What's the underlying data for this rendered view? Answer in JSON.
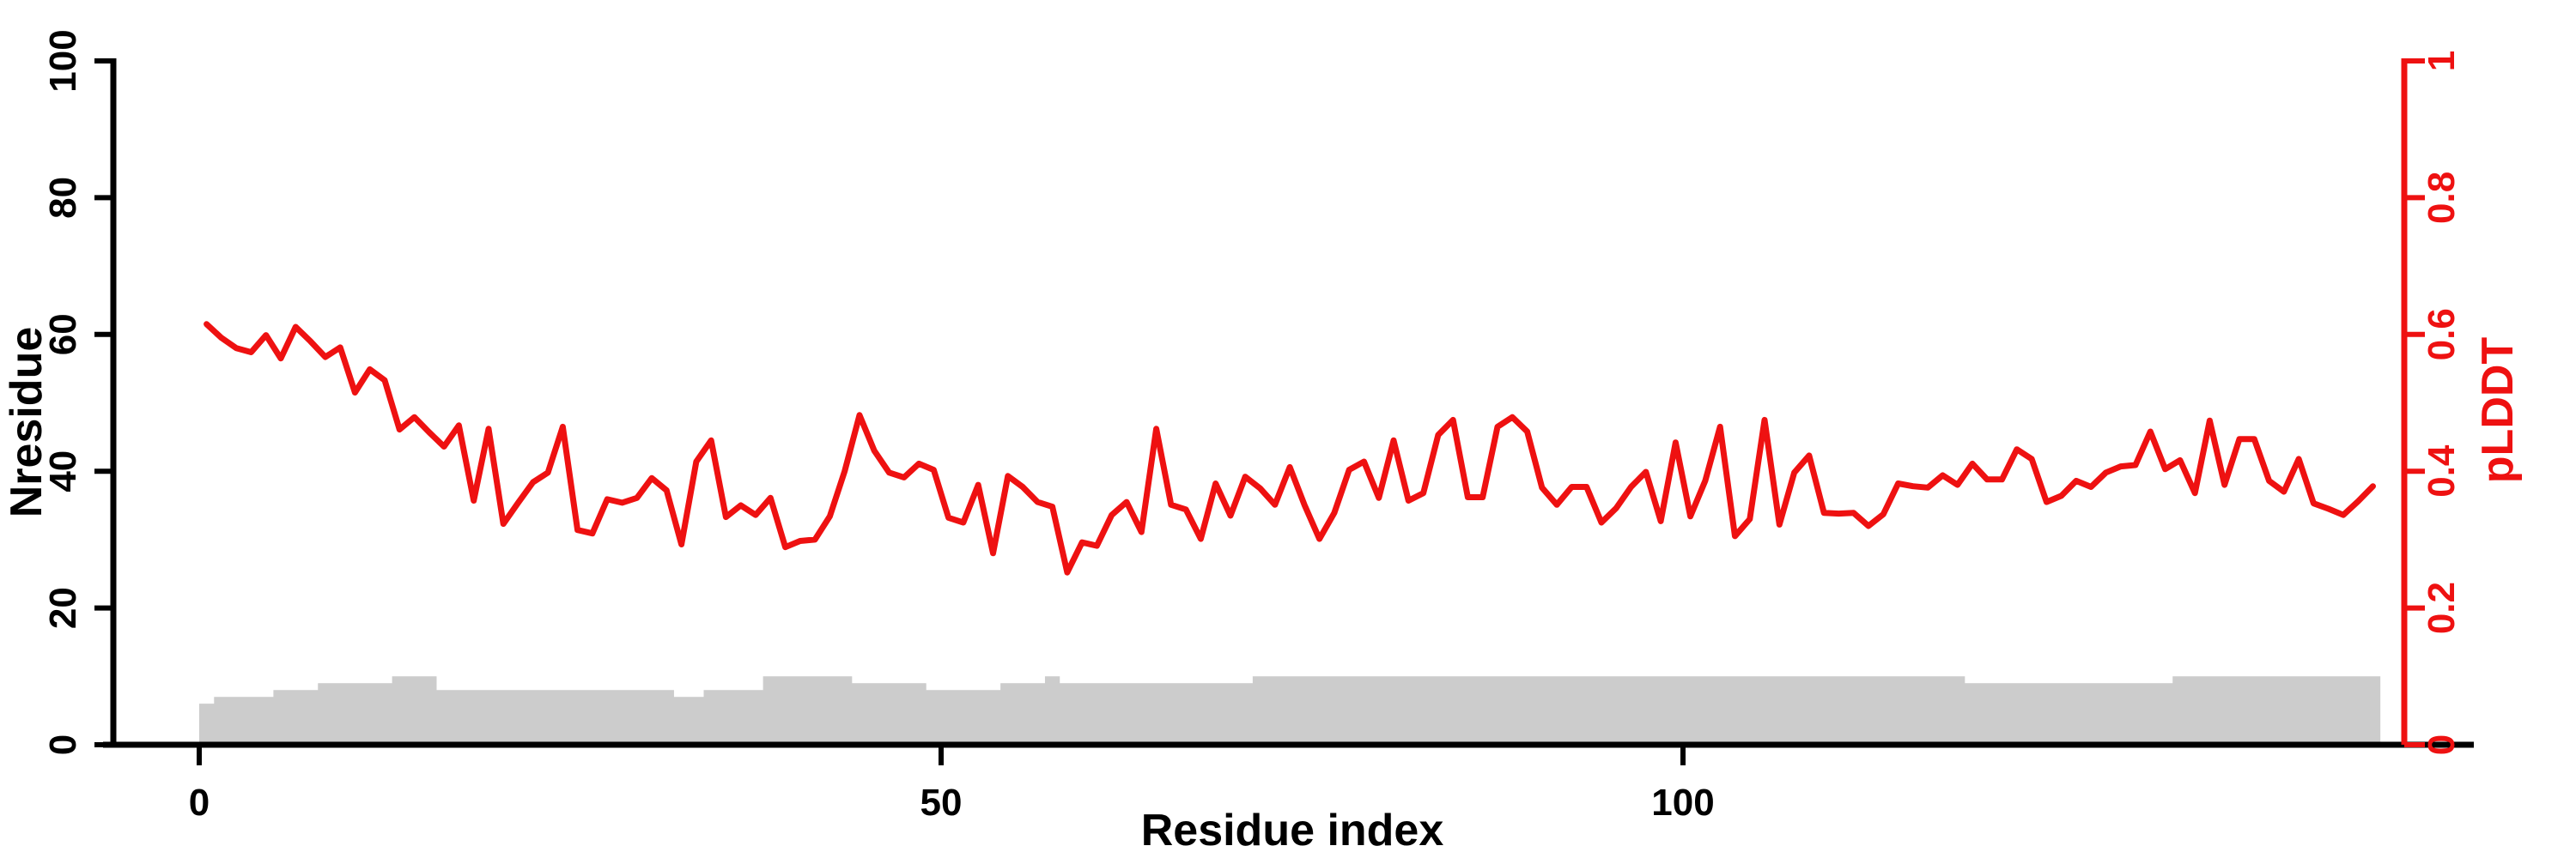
{
  "page": {
    "background_color": "#ffffff",
    "accent_red": "#ee1111",
    "bar_gray": "#cccccc",
    "axis_black": "#000000"
  },
  "chart_data": {
    "type": "line+bar dual-y-axis",
    "title": "",
    "xlabel": "Residue index",
    "x_ticks": [
      0,
      50,
      100
    ],
    "x_range_residues": [
      0,
      147
    ],
    "grid": false,
    "legend": "none",
    "left_axis": {
      "label": "Nresidue",
      "ticks": [
        "0",
        "20",
        "40",
        "60",
        "80",
        "100"
      ],
      "tick_values": [
        0,
        20,
        40,
        60,
        80,
        100
      ],
      "range": [
        0,
        100
      ],
      "color": "#000000"
    },
    "right_axis": {
      "label": "pLDDT",
      "ticks": [
        "0",
        "0.2",
        "0.4",
        "0.6",
        "0.8",
        "1"
      ],
      "tick_values": [
        0,
        0.2,
        0.4,
        0.6,
        0.8,
        1
      ],
      "range": [
        0,
        1
      ],
      "color": "#ee1111"
    },
    "bar_series": {
      "name": "Nresidue",
      "color": "#cccccc",
      "axis": "left",
      "steps": [
        {
          "from": 0,
          "to": 1,
          "height": 6
        },
        {
          "from": 1,
          "to": 5,
          "height": 7
        },
        {
          "from": 5,
          "to": 8,
          "height": 8
        },
        {
          "from": 8,
          "to": 13,
          "height": 9
        },
        {
          "from": 13,
          "to": 16,
          "height": 10
        },
        {
          "from": 16,
          "to": 32,
          "height": 8
        },
        {
          "from": 32,
          "to": 34,
          "height": 7
        },
        {
          "from": 34,
          "to": 38,
          "height": 8
        },
        {
          "from": 38,
          "to": 44,
          "height": 10
        },
        {
          "from": 44,
          "to": 49,
          "height": 9
        },
        {
          "from": 49,
          "to": 54,
          "height": 8
        },
        {
          "from": 54,
          "to": 57,
          "height": 9
        },
        {
          "from": 57,
          "to": 58,
          "height": 10
        },
        {
          "from": 58,
          "to": 71,
          "height": 9
        },
        {
          "from": 71,
          "to": 119,
          "height": 10
        },
        {
          "from": 119,
          "to": 133,
          "height": 9
        },
        {
          "from": 133,
          "to": 147,
          "height": 10
        }
      ]
    },
    "line_series": {
      "name": "pLDDT",
      "color": "#ee1111",
      "axis": "right",
      "first_residue": 1,
      "values": [
        0.615,
        0.595,
        0.58,
        0.574,
        0.599,
        0.565,
        0.611,
        0.59,
        0.567,
        0.581,
        0.515,
        0.549,
        0.533,
        0.461,
        0.479,
        0.457,
        0.436,
        0.467,
        0.357,
        0.462,
        0.323,
        0.354,
        0.384,
        0.398,
        0.465,
        0.314,
        0.309,
        0.359,
        0.354,
        0.361,
        0.39,
        0.372,
        0.293,
        0.414,
        0.445,
        0.333,
        0.35,
        0.336,
        0.361,
        0.289,
        0.298,
        0.3,
        0.334,
        0.4,
        0.482,
        0.43,
        0.398,
        0.391,
        0.411,
        0.402,
        0.332,
        0.325,
        0.38,
        0.28,
        0.393,
        0.377,
        0.355,
        0.348,
        0.252,
        0.296,
        0.291,
        0.336,
        0.355,
        0.311,
        0.462,
        0.351,
        0.344,
        0.301,
        0.382,
        0.335,
        0.392,
        0.375,
        0.351,
        0.406,
        0.35,
        0.301,
        0.339,
        0.402,
        0.414,
        0.361,
        0.445,
        0.357,
        0.368,
        0.453,
        0.475,
        0.362,
        0.362,
        0.465,
        0.479,
        0.458,
        0.376,
        0.351,
        0.377,
        0.377,
        0.325,
        0.346,
        0.377,
        0.399,
        0.327,
        0.442,
        0.334,
        0.386,
        0.465,
        0.305,
        0.33,
        0.475,
        0.322,
        0.398,
        0.423,
        0.339,
        0.338,
        0.339,
        0.32,
        0.337,
        0.382,
        0.378,
        0.376,
        0.394,
        0.38,
        0.411,
        0.388,
        0.388,
        0.432,
        0.418,
        0.355,
        0.364,
        0.386,
        0.377,
        0.398,
        0.407,
        0.409,
        0.458,
        0.403,
        0.416,
        0.368,
        0.474,
        0.38,
        0.447,
        0.447,
        0.386,
        0.37,
        0.418,
        0.353,
        0.345,
        0.336,
        0.356,
        0.378
      ]
    }
  }
}
